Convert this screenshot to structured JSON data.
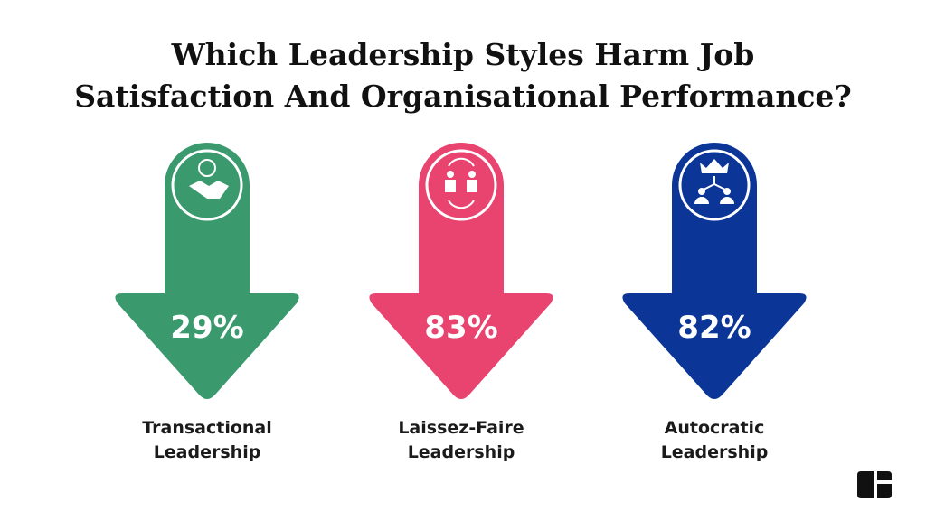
{
  "title_lines": [
    "Which Leadership Styles Harm Job",
    "Satisfaction And Organisational Performance?"
  ],
  "items": [
    {
      "value": "29%",
      "label_lines": [
        "Transactional",
        "Leadership"
      ]
    },
    {
      "value": "83%",
      "label_lines": [
        "Laissez-Faire",
        "Leadership"
      ]
    },
    {
      "value": "82%",
      "label_lines": [
        "Autocratic",
        "Leadership"
      ]
    }
  ]
}
